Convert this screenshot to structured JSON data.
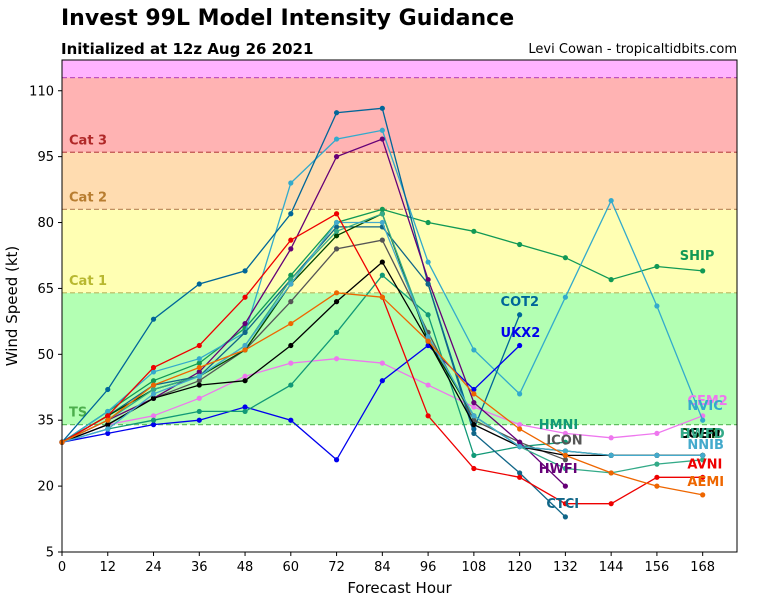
{
  "header": {
    "title": "Invest 99L Model Intensity Guidance",
    "subtitle": "Initialized at 12z Aug 26 2021",
    "credit": "Levi Cowan - tropicaltidbits.com"
  },
  "chart_data": {
    "type": "line",
    "xlabel": "Forecast Hour",
    "ylabel": "Wind Speed (kt)",
    "xlim": [
      0,
      177
    ],
    "ylim": [
      5,
      117
    ],
    "xticks": [
      0,
      12,
      24,
      36,
      48,
      60,
      72,
      84,
      96,
      108,
      120,
      132,
      144,
      156,
      168
    ],
    "yticks": [
      5,
      20,
      35,
      50,
      65,
      80,
      95,
      110
    ],
    "bands": [
      {
        "name": "TS",
        "from": 34,
        "to": 64,
        "fill": "#b3ffb3",
        "line": "#5fbf5f",
        "text": "#4cae4c"
      },
      {
        "name": "Cat 1",
        "from": 64,
        "to": 83,
        "fill": "#ffffb3",
        "line": "#b8b860",
        "text": "#b8b830"
      },
      {
        "name": "Cat 2",
        "from": 83,
        "to": 96,
        "fill": "#ffdcb0",
        "line": "#c09060",
        "text": "#b87d30"
      },
      {
        "name": "Cat 3",
        "from": 96,
        "to": 113,
        "fill": "#ffb3b3",
        "line": "#c05050",
        "text": "#b02828"
      },
      {
        "name": "",
        "from": 113,
        "to": 117,
        "fill": "#ffb3ff",
        "line": "#c050c0",
        "text": "#b030b0"
      }
    ],
    "series": [
      {
        "name": "SHIP",
        "color": "#119955",
        "label_x": 162,
        "label_y": 71.5,
        "x": [
          0,
          12,
          24,
          36,
          48,
          60,
          72,
          84,
          96,
          108,
          120,
          132,
          144,
          156,
          168
        ],
        "y": [
          30,
          37,
          44,
          48,
          56,
          68,
          80,
          83,
          80,
          78,
          75,
          72,
          67,
          70,
          69
        ]
      },
      {
        "name": "CEM2",
        "color": "#ee77ee",
        "label_x": 164,
        "label_y": 38.5,
        "x": [
          0,
          12,
          24,
          36,
          48,
          60,
          72,
          84,
          96,
          108,
          120,
          132,
          144,
          156,
          168
        ],
        "y": [
          30,
          34,
          36,
          40,
          45,
          48,
          49,
          48,
          43,
          38,
          34,
          32,
          31,
          32,
          36
        ]
      },
      {
        "name": "NVIC",
        "color": "#33aacc",
        "label_x": 164,
        "label_y": 37.3,
        "x": [
          0,
          12,
          24,
          36,
          48,
          60,
          72,
          84,
          96,
          108,
          120,
          132,
          144,
          156,
          168
        ],
        "y": [
          30,
          37,
          46,
          49,
          55,
          89,
          99,
          101,
          71,
          51,
          41,
          63,
          85,
          61,
          35
        ]
      },
      {
        "name": "COT2",
        "color": "#006699",
        "label_x": 115,
        "label_y": 61,
        "x": [
          0,
          12,
          24,
          36,
          48,
          60,
          72,
          84,
          96,
          108,
          120
        ],
        "y": [
          30,
          42,
          58,
          66,
          69,
          82,
          105,
          106,
          66,
          33,
          59
        ]
      },
      {
        "name": "UKX2",
        "color": "#0000ee",
        "label_x": 115,
        "label_y": 54,
        "x": [
          0,
          12,
          24,
          36,
          48,
          60,
          72,
          84,
          96,
          108,
          120
        ],
        "y": [
          30,
          32,
          34,
          35,
          38,
          35,
          26,
          44,
          52,
          42,
          52
        ]
      },
      {
        "name": "HMNI",
        "color": "#119977",
        "label_x": 125,
        "label_y": 33,
        "x": [
          0,
          12,
          24,
          36,
          48,
          60,
          72,
          84,
          96,
          108,
          120,
          132
        ],
        "y": [
          30,
          33,
          35,
          37,
          37,
          43,
          55,
          68,
          59,
          27,
          29,
          30
        ]
      },
      {
        "name": "ICON",
        "color": "#555555",
        "label_x": 127,
        "label_y": 29.5,
        "x": [
          0,
          12,
          24,
          36,
          48,
          60,
          72,
          84,
          96,
          108,
          120,
          132
        ],
        "y": [
          30,
          34,
          40,
          44,
          51,
          62,
          74,
          76,
          55,
          35,
          30,
          26
        ]
      },
      {
        "name": "HWFI",
        "color": "#660077",
        "label_x": 125,
        "label_y": 23,
        "x": [
          0,
          12,
          24,
          36,
          48,
          60,
          72,
          84,
          96,
          108,
          120,
          132
        ],
        "y": [
          30,
          35,
          40,
          46,
          57,
          74,
          95,
          99,
          67,
          39,
          30,
          20
        ]
      },
      {
        "name": "CTCI",
        "color": "#116688",
        "label_x": 127,
        "label_y": 15,
        "x": [
          0,
          12,
          24,
          36,
          48,
          60,
          72,
          84,
          96,
          108,
          120,
          132
        ],
        "y": [
          30,
          36,
          43,
          45,
          55,
          67,
          79,
          79,
          66,
          32,
          23,
          13
        ]
      },
      {
        "name": "DSHP",
        "color": "#004400",
        "label_x": 162,
        "label_y": 31,
        "x": [
          0,
          12,
          24,
          36,
          48,
          60,
          72,
          84,
          96,
          108,
          120,
          132,
          144,
          156,
          168
        ],
        "y": [
          30,
          36,
          42,
          45,
          51,
          66,
          77,
          82,
          53,
          36,
          29,
          28,
          27,
          27,
          27
        ]
      },
      {
        "name": "LGEM",
        "color": "#000000",
        "label_x": 162,
        "label_y": 31,
        "x": [
          0,
          12,
          24,
          36,
          48,
          60,
          72,
          84,
          96,
          108,
          120,
          132,
          144,
          156,
          168
        ],
        "y": [
          30,
          34,
          40,
          43,
          44,
          52,
          62,
          71,
          53,
          34,
          29,
          27,
          27,
          27,
          27
        ]
      },
      {
        "name": "HWFD",
        "color": "#33aa88",
        "label_x": 162,
        "label_y": 31,
        "x": [
          0,
          12,
          24,
          36,
          48,
          60,
          72,
          84,
          96,
          108,
          120,
          132,
          144,
          156,
          168
        ],
        "y": [
          30,
          35,
          42,
          45,
          52,
          67,
          78,
          82,
          54,
          36,
          29,
          24,
          23,
          25,
          26
        ]
      },
      {
        "name": "NNIB",
        "color": "#44aacc",
        "label_x": 164,
        "label_y": 28.5,
        "x": [
          0,
          12,
          24,
          36,
          48,
          60,
          72,
          84,
          96,
          108,
          120,
          132,
          144,
          156,
          168
        ],
        "y": [
          30,
          33,
          41,
          45,
          52,
          66,
          80,
          80,
          54,
          36,
          29,
          28,
          27,
          27,
          27
        ]
      },
      {
        "name": "AVNI",
        "color": "#ee0000",
        "label_x": 164,
        "label_y": 24,
        "x": [
          0,
          12,
          24,
          36,
          48,
          60,
          72,
          84,
          96,
          108,
          120,
          132,
          144,
          156,
          168
        ],
        "y": [
          30,
          36,
          47,
          52,
          63,
          76,
          82,
          63,
          36,
          24,
          22,
          16,
          16,
          22,
          22
        ]
      },
      {
        "name": "AEMI",
        "color": "#ee6600",
        "label_x": 164,
        "label_y": 20,
        "x": [
          0,
          12,
          24,
          36,
          48,
          60,
          72,
          84,
          96,
          108,
          120,
          132,
          144,
          156,
          168
        ],
        "y": [
          30,
          35,
          43,
          47,
          51,
          57,
          64,
          63,
          53,
          41,
          33,
          27,
          23,
          20,
          18
        ]
      }
    ],
    "label_overlap_note_hidden": false
  }
}
